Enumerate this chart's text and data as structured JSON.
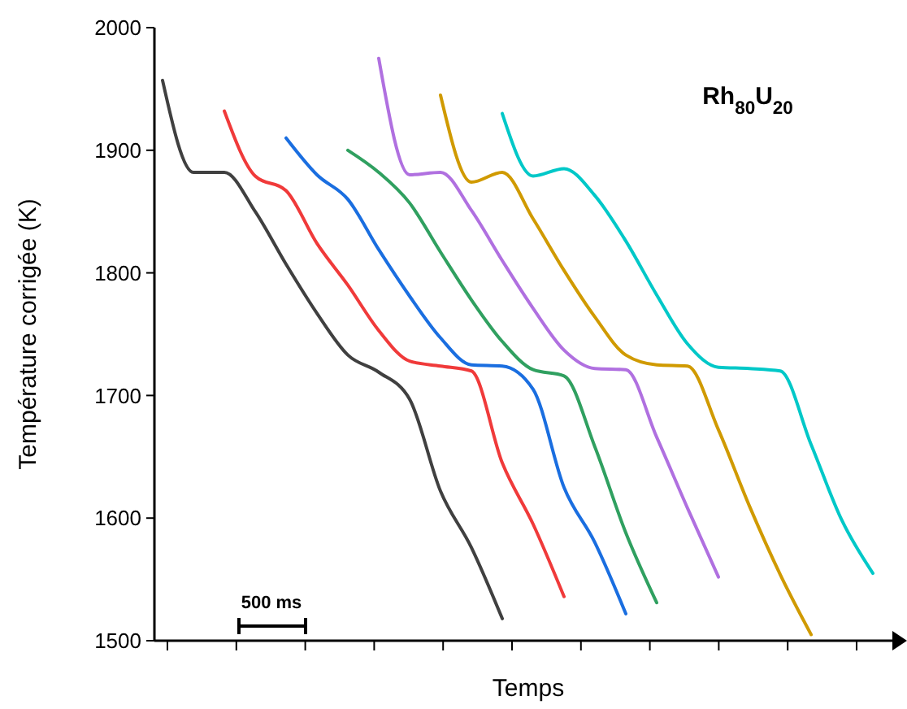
{
  "chart_data": {
    "type": "line",
    "xlabel": "Temps",
    "ylabel": "Température corrigée (K)",
    "annotations": [
      "Rh$_{80}$U$_{20}$",
      "500 ms"
    ],
    "categories": [
      null,
      null,
      null,
      null,
      null,
      null,
      null,
      null,
      null,
      null,
      null,
      null,
      null,
      null,
      null,
      null,
      null,
      null,
      null,
      null,
      null,
      null,
      null,
      null
    ],
    "ylim": [
      1500,
      2000
    ],
    "yticks": [
      1500,
      1600,
      1700,
      1800,
      1900,
      2000
    ],
    "tick_labels": "y",
    "grid": false,
    "line_style": "solid",
    "series": [
      {
        "color": "#404040",
        "values": [
          1957,
          1882,
          1882,
          1850,
          1807,
          1767,
          1733,
          1719,
          1697,
          1622,
          1576,
          1518,
          null,
          null,
          null,
          null,
          null,
          null,
          null,
          null,
          null,
          null,
          null,
          null
        ]
      },
      {
        "color": "#f03a3a",
        "values": [
          null,
          null,
          1932,
          1879,
          1867,
          1824,
          1790,
          1753,
          1728,
          1724,
          1720,
          1645,
          1595,
          1536,
          null,
          null,
          null,
          null,
          null,
          null,
          null,
          null,
          null,
          null
        ]
      },
      {
        "color": "#1a6ee0",
        "values": [
          null,
          null,
          null,
          null,
          1910,
          1880,
          1860,
          1819,
          1781,
          1747,
          1725,
          1724,
          1705,
          1625,
          1580,
          1522,
          null,
          null,
          null,
          null,
          null,
          null,
          null,
          null
        ]
      },
      {
        "color": "#30a060",
        "values": [
          null,
          null,
          null,
          null,
          null,
          null,
          1900,
          1882,
          1857,
          1817,
          1778,
          1744,
          1721,
          1716,
          1658,
          1588,
          1531,
          null,
          null,
          null,
          null,
          null,
          null,
          null
        ]
      },
      {
        "color": "#b070e0",
        "values": [
          null,
          null,
          null,
          null,
          null,
          null,
          null,
          1975,
          1880,
          1882,
          1851,
          1810,
          1771,
          1737,
          1722,
          1721,
          1666,
          1608,
          1552,
          null,
          null,
          null,
          null,
          null
        ]
      },
      {
        "color": "#d09a00",
        "values": [
          null,
          null,
          null,
          null,
          null,
          null,
          null,
          null,
          null,
          1945,
          1874,
          1882,
          1844,
          1802,
          1764,
          1733,
          1725,
          1724,
          1672,
          1610,
          1554,
          1505,
          null,
          null
        ]
      },
      {
        "color": "#00c8c8",
        "values": [
          null,
          null,
          null,
          null,
          null,
          null,
          null,
          null,
          null,
          null,
          null,
          1930,
          1879,
          1885,
          1863,
          1826,
          1782,
          1742,
          1723,
          1722,
          1720,
          1660,
          1598,
          1555
        ]
      }
    ]
  }
}
